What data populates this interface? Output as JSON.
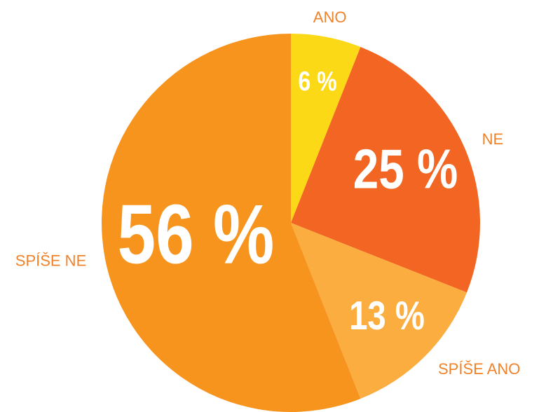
{
  "chart_data": {
    "type": "pie",
    "categories": [
      "ANO",
      "NE",
      "SPÍŠE ANO",
      "SPÍŠE NE"
    ],
    "values": [
      6,
      25,
      13,
      56
    ],
    "value_labels": [
      "6 %",
      "25 %",
      "13 %",
      "56 %"
    ],
    "colors": [
      "#fcd917",
      "#f26522",
      "#fbad3f",
      "#f7941d"
    ],
    "label_color": "#f0822a"
  }
}
